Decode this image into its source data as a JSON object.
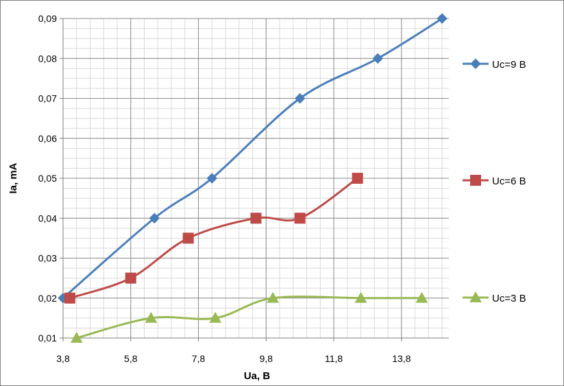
{
  "chart_data": {
    "type": "line",
    "xlabel": "Ua, B",
    "ylabel": "Ia, mA",
    "xlim": [
      3.8,
      15.2
    ],
    "ylim": [
      0.01,
      0.09
    ],
    "x_ticks": [
      "3,8",
      "5,8",
      "7,8",
      "9,8",
      "11,8",
      "13,8"
    ],
    "x_tick_values": [
      3.8,
      5.8,
      7.8,
      9.8,
      11.8,
      13.8
    ],
    "y_ticks": [
      "0,01",
      "0,02",
      "0,03",
      "0,04",
      "0,05",
      "0,06",
      "0,07",
      "0,08",
      "0,09"
    ],
    "y_tick_values": [
      0.01,
      0.02,
      0.03,
      0.04,
      0.05,
      0.06,
      0.07,
      0.08,
      0.09
    ],
    "grid": true,
    "legend_position": "right",
    "series": [
      {
        "name": "Uc=9 B",
        "color": "#4a7ebb",
        "marker": "diamond",
        "points": [
          [
            3.8,
            0.02
          ],
          [
            6.5,
            0.04
          ],
          [
            8.2,
            0.05
          ],
          [
            10.8,
            0.07
          ],
          [
            13.1,
            0.08
          ],
          [
            15.0,
            0.09
          ]
        ]
      },
      {
        "name": "Uc=6 B",
        "color": "#be4b48",
        "marker": "square",
        "points": [
          [
            4.0,
            0.02
          ],
          [
            5.8,
            0.025
          ],
          [
            7.5,
            0.035
          ],
          [
            9.5,
            0.04
          ],
          [
            10.8,
            0.04
          ],
          [
            12.5,
            0.05
          ]
        ]
      },
      {
        "name": "Uc=3 B",
        "color": "#98b954",
        "marker": "triangle",
        "points": [
          [
            4.2,
            0.01
          ],
          [
            6.4,
            0.015
          ],
          [
            8.3,
            0.015
          ],
          [
            10.0,
            0.02
          ],
          [
            12.6,
            0.02
          ],
          [
            14.4,
            0.02
          ]
        ]
      }
    ]
  }
}
